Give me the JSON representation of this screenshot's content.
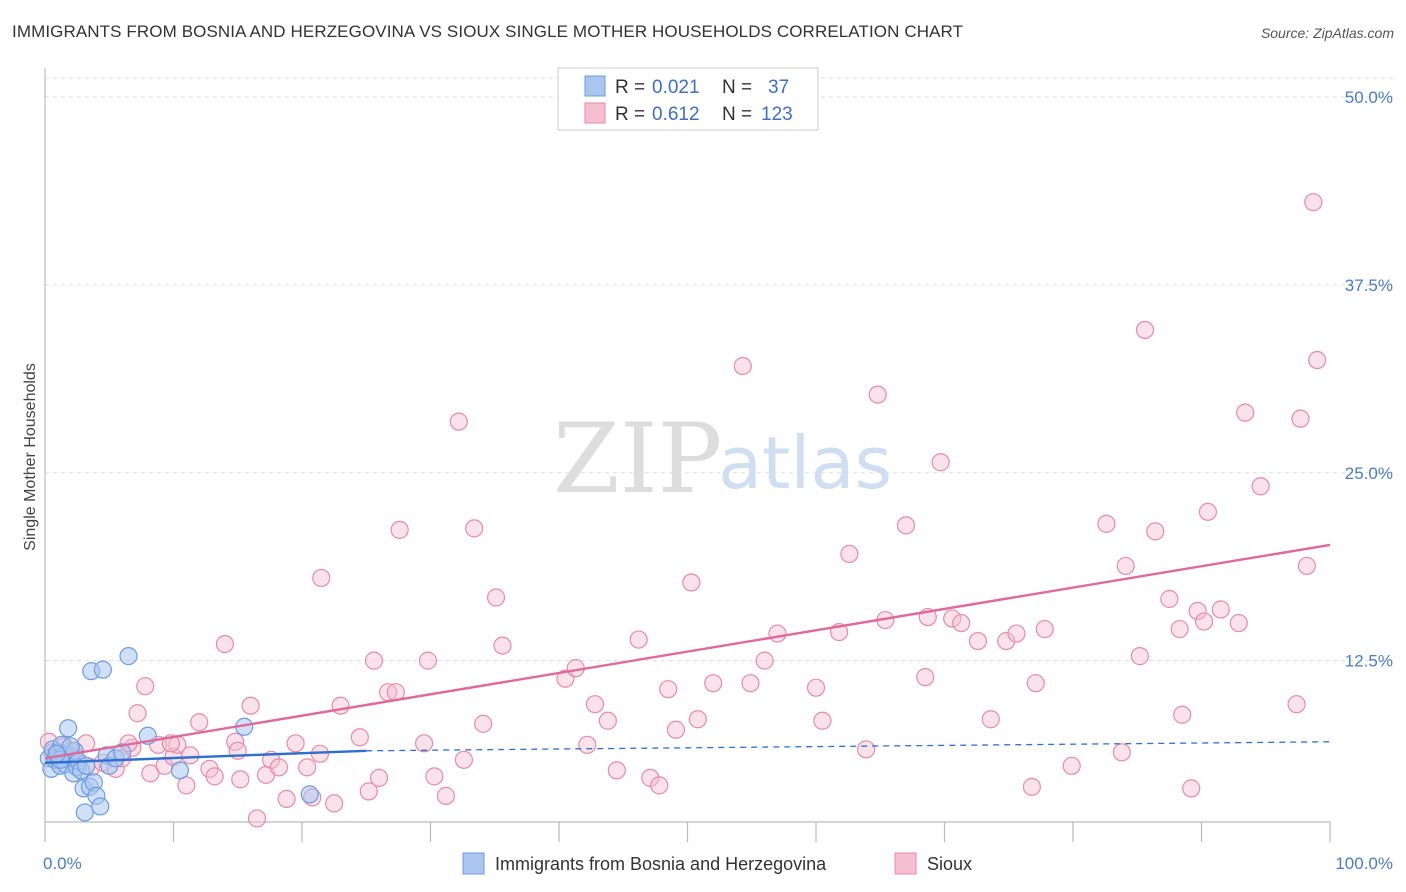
{
  "title": "IMMIGRANTS FROM BOSNIA AND HERZEGOVINA VS SIOUX SINGLE MOTHER HOUSEHOLDS CORRELATION CHART",
  "source": "Source: ZipAtlas.com",
  "watermark": {
    "zip": "ZIP",
    "atlas": "atlas"
  },
  "colors": {
    "blue_fill": "#aac6f0",
    "blue_stroke": "#6e9be0",
    "blue_line": "#2f6fd0",
    "pink_fill": "#f5bfd0",
    "pink_stroke": "#e88aab",
    "pink_line": "#e0699a",
    "grid": "#dddddd",
    "axis": "#bbbbbb"
  },
  "stats": {
    "blue": {
      "r_label": "R =",
      "r_value": "0.021",
      "n_label": "N =",
      "n_value": "37"
    },
    "pink": {
      "r_label": "R =",
      "r_value": "0.612",
      "n_label": "N =",
      "n_value": "123"
    }
  },
  "legend": {
    "blue": "Immigrants from Bosnia and Herzegovina",
    "pink": "Sioux"
  },
  "chart_data": {
    "type": "scatter",
    "title": "IMMIGRANTS FROM BOSNIA AND HERZEGOVINA VS SIOUX SINGLE MOTHER HOUSEHOLDS CORRELATION CHART",
    "xlabel": "",
    "ylabel": "Single Mother Households",
    "xlim": [
      0,
      100
    ],
    "ylim": [
      0,
      52
    ],
    "x_tick_labels": [
      "0.0%",
      "100.0%"
    ],
    "y_ticks": [
      12.5,
      25.0,
      37.5,
      50.0
    ],
    "y_tick_labels": [
      "12.5%",
      "25.0%",
      "37.5%",
      "50.0%"
    ],
    "grid": true,
    "legend_position": "bottom-center",
    "series": [
      {
        "name": "Immigrants from Bosnia and Herzegovina",
        "color": "#6e9be0",
        "trend": {
          "x": [
            0,
            25
          ],
          "y": [
            5.7,
            6.5
          ],
          "dashed_extension_to_x": 100,
          "dashed_end_y": 7.1
        },
        "points": [
          [
            0.3,
            6.0
          ],
          [
            0.5,
            5.3
          ],
          [
            0.6,
            6.6
          ],
          [
            0.8,
            5.9
          ],
          [
            1.0,
            6.4
          ],
          [
            1.2,
            5.5
          ],
          [
            1.3,
            6.9
          ],
          [
            1.5,
            6.2
          ],
          [
            1.6,
            5.6
          ],
          [
            1.8,
            8.0
          ],
          [
            2.0,
            6.1
          ],
          [
            2.2,
            5.0
          ],
          [
            2.3,
            6.5
          ],
          [
            2.5,
            5.4
          ],
          [
            2.6,
            5.8
          ],
          [
            2.8,
            5.2
          ],
          [
            3.0,
            4.0
          ],
          [
            3.1,
            2.4
          ],
          [
            3.2,
            5.5
          ],
          [
            3.5,
            4.1
          ],
          [
            3.6,
            11.8
          ],
          [
            3.8,
            4.4
          ],
          [
            4.0,
            3.5
          ],
          [
            4.3,
            2.8
          ],
          [
            4.5,
            11.9
          ],
          [
            4.8,
            6.2
          ],
          [
            5.0,
            5.5
          ],
          [
            5.5,
            6.0
          ],
          [
            6.0,
            6.4
          ],
          [
            6.5,
            12.8
          ],
          [
            8.0,
            7.5
          ],
          [
            10.5,
            5.2
          ],
          [
            15.5,
            8.1
          ],
          [
            2.0,
            6.8
          ],
          [
            1.2,
            5.9
          ],
          [
            0.9,
            6.3
          ],
          [
            20.6,
            3.6
          ]
        ]
      },
      {
        "name": "Sioux",
        "color": "#e88aab",
        "trend": {
          "x": [
            0,
            100
          ],
          "y": [
            6.0,
            20.2
          ]
        },
        "points": [
          [
            0.3,
            7.1
          ],
          [
            0.6,
            6.4
          ],
          [
            1.0,
            6.1
          ],
          [
            1.5,
            6.8
          ],
          [
            2.0,
            6.5
          ],
          [
            2.4,
            5.9
          ],
          [
            3.2,
            7.0
          ],
          [
            3.6,
            5.4
          ],
          [
            4.5,
            5.7
          ],
          [
            5.5,
            5.3
          ],
          [
            6.0,
            6.0
          ],
          [
            6.8,
            6.7
          ],
          [
            7.2,
            9.0
          ],
          [
            7.8,
            10.8
          ],
          [
            8.2,
            5.0
          ],
          [
            8.8,
            6.9
          ],
          [
            9.3,
            5.5
          ],
          [
            10.0,
            6.1
          ],
          [
            10.3,
            6.9
          ],
          [
            11.0,
            4.2
          ],
          [
            11.3,
            6.2
          ],
          [
            12.0,
            8.4
          ],
          [
            12.8,
            5.3
          ],
          [
            13.2,
            4.8
          ],
          [
            14.0,
            13.6
          ],
          [
            14.8,
            7.1
          ],
          [
            15.2,
            4.6
          ],
          [
            16.0,
            9.5
          ],
          [
            16.5,
            2.0
          ],
          [
            17.2,
            4.9
          ],
          [
            17.6,
            5.9
          ],
          [
            18.2,
            5.4
          ],
          [
            18.8,
            3.3
          ],
          [
            19.5,
            7.0
          ],
          [
            20.4,
            5.4
          ],
          [
            20.8,
            3.4
          ],
          [
            21.4,
            6.3
          ],
          [
            21.5,
            18.0
          ],
          [
            22.5,
            3.0
          ],
          [
            23.0,
            9.5
          ],
          [
            24.5,
            7.4
          ],
          [
            25.2,
            3.8
          ],
          [
            25.6,
            12.5
          ],
          [
            26.0,
            4.7
          ],
          [
            26.7,
            10.4
          ],
          [
            27.3,
            10.4
          ],
          [
            27.6,
            21.2
          ],
          [
            29.5,
            7.0
          ],
          [
            29.8,
            12.5
          ],
          [
            30.3,
            4.8
          ],
          [
            31.2,
            3.5
          ],
          [
            32.2,
            28.4
          ],
          [
            32.6,
            5.9
          ],
          [
            33.4,
            21.3
          ],
          [
            34.1,
            8.3
          ],
          [
            35.1,
            16.7
          ],
          [
            35.6,
            13.5
          ],
          [
            40.5,
            11.3
          ],
          [
            41.3,
            12.0
          ],
          [
            42.2,
            6.9
          ],
          [
            42.8,
            9.6
          ],
          [
            43.8,
            8.5
          ],
          [
            44.5,
            5.2
          ],
          [
            46.2,
            13.9
          ],
          [
            47.1,
            4.7
          ],
          [
            47.8,
            4.2
          ],
          [
            48.5,
            10.6
          ],
          [
            49.1,
            7.9
          ],
          [
            50.3,
            17.7
          ],
          [
            50.8,
            8.6
          ],
          [
            52.0,
            11.0
          ],
          [
            54.3,
            32.1
          ],
          [
            54.9,
            11.0
          ],
          [
            56.0,
            12.5
          ],
          [
            57.0,
            14.3
          ],
          [
            60.0,
            10.7
          ],
          [
            60.5,
            8.5
          ],
          [
            61.8,
            14.4
          ],
          [
            62.6,
            19.6
          ],
          [
            63.9,
            6.6
          ],
          [
            64.8,
            30.2
          ],
          [
            65.4,
            15.2
          ],
          [
            67.0,
            21.5
          ],
          [
            68.5,
            11.4
          ],
          [
            68.7,
            15.4
          ],
          [
            69.7,
            25.7
          ],
          [
            70.6,
            15.3
          ],
          [
            71.3,
            15.0
          ],
          [
            72.6,
            13.8
          ],
          [
            73.6,
            8.6
          ],
          [
            74.8,
            13.8
          ],
          [
            75.6,
            14.3
          ],
          [
            76.8,
            4.1
          ],
          [
            77.1,
            11.0
          ],
          [
            77.8,
            14.6
          ],
          [
            79.9,
            5.5
          ],
          [
            82.6,
            21.6
          ],
          [
            83.8,
            6.4
          ],
          [
            84.1,
            18.8
          ],
          [
            85.2,
            12.8
          ],
          [
            85.6,
            34.5
          ],
          [
            86.4,
            21.1
          ],
          [
            87.5,
            16.6
          ],
          [
            88.3,
            14.6
          ],
          [
            88.5,
            8.9
          ],
          [
            89.2,
            4.0
          ],
          [
            89.7,
            15.8
          ],
          [
            90.2,
            15.1
          ],
          [
            90.5,
            22.4
          ],
          [
            91.5,
            15.9
          ],
          [
            92.9,
            15.0
          ],
          [
            93.4,
            29.0
          ],
          [
            94.6,
            24.1
          ],
          [
            97.4,
            9.6
          ],
          [
            97.7,
            28.6
          ],
          [
            98.2,
            18.8
          ],
          [
            98.7,
            43.0
          ],
          [
            99.0,
            32.5
          ],
          [
            15.0,
            6.5
          ],
          [
            6.5,
            7.0
          ],
          [
            9.8,
            7.0
          ]
        ]
      }
    ]
  }
}
